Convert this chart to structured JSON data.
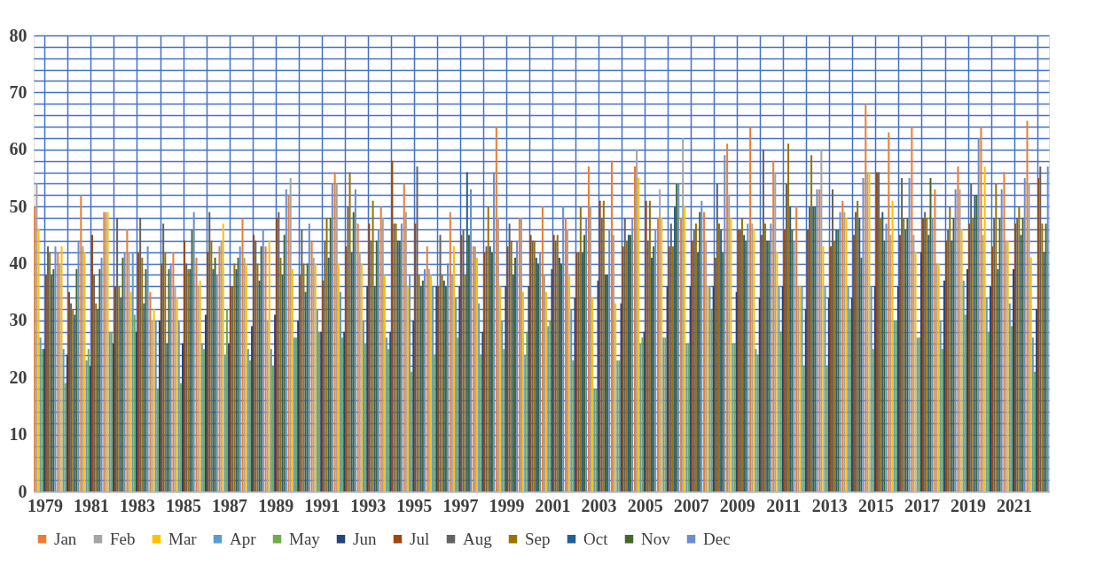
{
  "chart_data": {
    "type": "bar",
    "categories": [
      "1979",
      null,
      "1981",
      null,
      "1983",
      null,
      "1985",
      null,
      "1987",
      null,
      "1989",
      null,
      "1991",
      null,
      "1993",
      null,
      "1995",
      null,
      "1997",
      null,
      "1999",
      null,
      "2001",
      null,
      "2003",
      null,
      "2005",
      null,
      "2007",
      null,
      "2009",
      null,
      "2011",
      null,
      "2013",
      null,
      "2015",
      null,
      "2017",
      null,
      "2019",
      null,
      "2021",
      null
    ],
    "series": [
      {
        "name": "Jan",
        "color": "#ed7d31",
        "values": [
          50,
          42,
          52,
          49,
          46,
          35,
          42,
          41,
          43,
          48,
          43,
          52,
          44,
          56,
          47,
          50,
          54,
          43,
          49,
          43,
          64,
          48,
          50,
          48,
          57,
          58,
          57,
          48,
          48,
          49,
          61,
          64,
          58,
          50,
          53,
          51,
          68,
          63,
          64,
          53,
          57,
          64,
          56,
          65
        ]
      },
      {
        "name": "Feb",
        "color": "#a5a5a5",
        "values": [
          54,
          40,
          43,
          49,
          42,
          30,
          36,
          36,
          44,
          41,
          30,
          55,
          41,
          54,
          42,
          48,
          49,
          39,
          38,
          43,
          48,
          48,
          38,
          46,
          50,
          45,
          60,
          53,
          62,
          44,
          52,
          47,
          56,
          36,
          60,
          49,
          56,
          45,
          45,
          40,
          53,
          45,
          44,
          54
        ]
      },
      {
        "name": "Mar",
        "color": "#ffc000",
        "values": [
          46,
          43,
          42,
          49,
          35,
          32,
          34,
          37,
          47,
          40,
          44,
          39,
          40,
          40,
          40,
          38,
          36,
          38,
          43,
          41,
          36,
          35,
          35,
          38,
          34,
          33,
          55,
          48,
          50,
          36,
          48,
          46,
          42,
          36,
          43,
          48,
          56,
          51,
          42,
          40,
          46,
          57,
          44,
          41
        ]
      },
      {
        "name": "Apr",
        "color": "#5b9bd5",
        "values": [
          27,
          25,
          23,
          28,
          42,
          30,
          30,
          26,
          24,
          25,
          25,
          27,
          32,
          35,
          30,
          27,
          38,
          36,
          34,
          33,
          30,
          24,
          29,
          32,
          18,
          23,
          26,
          27,
          26,
          36,
          26,
          25,
          36,
          36,
          36,
          36,
          36,
          30,
          27,
          30,
          37,
          34,
          33,
          27
        ]
      },
      {
        "name": "May",
        "color": "#70ad47",
        "values": [
          25,
          19,
          25,
          28,
          31,
          18,
          19,
          25,
          32,
          23,
          22,
          27,
          28,
          27,
          26,
          25,
          21,
          24,
          27,
          24,
          25,
          28,
          30,
          23,
          18,
          23,
          27,
          27,
          26,
          32,
          26,
          24,
          28,
          22,
          22,
          32,
          25,
          30,
          27,
          25,
          31,
          28,
          29,
          21
        ]
      },
      {
        "name": "Jun",
        "color": "#264478",
        "values": [
          25,
          24,
          22,
          26,
          28,
          30,
          26,
          31,
          26,
          29,
          31,
          30,
          28,
          28,
          36,
          28,
          30,
          36,
          36,
          28,
          36,
          36,
          39,
          34,
          37,
          33,
          28,
          36,
          36,
          36,
          35,
          34,
          36,
          32,
          34,
          34,
          36,
          36,
          42,
          37,
          39,
          36,
          39,
          32
        ]
      },
      {
        "name": "Jul",
        "color": "#9e480e",
        "values": [
          38,
          35,
          45,
          36,
          42,
          40,
          44,
          42,
          36,
          45,
          48,
          38,
          37,
          43,
          47,
          58,
          47,
          36,
          45,
          42,
          43,
          45,
          45,
          42,
          51,
          43,
          51,
          43,
          44,
          41,
          46,
          45,
          46,
          46,
          43,
          45,
          56,
          45,
          48,
          44,
          47,
          43,
          47,
          55
        ]
      },
      {
        "name": "Aug",
        "color": "#636363",
        "values": [
          43,
          33,
          38,
          48,
          48,
          47,
          40,
          49,
          36,
          44,
          49,
          46,
          44,
          50,
          44,
          47,
          57,
          45,
          46,
          43,
          47,
          44,
          44,
          42,
          48,
          48,
          44,
          47,
          46,
          54,
          46,
          60,
          54,
          50,
          53,
          49,
          56,
          55,
          49,
          46,
          54,
          48,
          48,
          57
        ]
      },
      {
        "name": "Sep",
        "color": "#997300",
        "values": [
          42,
          32,
          33,
          36,
          41,
          42,
          39,
          44,
          40,
          40,
          41,
          40,
          48,
          56,
          51,
          47,
          38,
          38,
          38,
          50,
          44,
          44,
          45,
          50,
          51,
          44,
          51,
          43,
          47,
          47,
          48,
          47,
          61,
          59,
          44,
          51,
          48,
          48,
          48,
          50,
          48,
          54,
          50,
          47
        ]
      },
      {
        "name": "Oct",
        "color": "#255e91",
        "values": [
          38,
          31,
          32,
          34,
          33,
          26,
          39,
          39,
          39,
          37,
          38,
          35,
          41,
          42,
          36,
          44,
          36,
          37,
          56,
          43,
          38,
          41,
          41,
          42,
          38,
          45,
          41,
          50,
          42,
          46,
          45,
          44,
          50,
          50,
          46,
          48,
          49,
          46,
          45,
          44,
          52,
          39,
          45,
          42
        ]
      },
      {
        "name": "Nov",
        "color": "#43682b",
        "values": [
          39,
          39,
          39,
          41,
          39,
          39,
          46,
          41,
          41,
          43,
          45,
          40,
          48,
          49,
          44,
          44,
          37,
          36,
          45,
          42,
          41,
          40,
          40,
          45,
          38,
          45,
          43,
          54,
          49,
          42,
          44,
          44,
          46,
          50,
          46,
          41,
          44,
          48,
          55,
          48,
          52,
          48,
          48,
          47
        ]
      },
      {
        "name": "Dec",
        "color": "#698ed0",
        "values": [
          43,
          44,
          41,
          42,
          43,
          40,
          49,
          38,
          43,
          46,
          53,
          47,
          54,
          53,
          46,
          47,
          39,
          40,
          53,
          56,
          44,
          42,
          50,
          48,
          46,
          48,
          46,
          54,
          51,
          59,
          47,
          47,
          44,
          53,
          49,
          55,
          47,
          55,
          48,
          53,
          62,
          53,
          55,
          57
        ]
      }
    ],
    "ylim": [
      0,
      80
    ],
    "yticks": [
      0,
      {
        "value": 2,
        "label": null
      },
      {
        "value": 4,
        "label": null
      },
      {
        "value": 6,
        "label": null
      },
      {
        "value": 8,
        "label": null
      },
      10,
      {
        "value": 12,
        "label": null
      },
      {
        "value": 14,
        "label": null
      },
      {
        "value": 16,
        "label": null
      },
      {
        "value": 18,
        "label": null
      },
      20,
      {
        "value": 22,
        "label": null
      },
      {
        "value": 24,
        "label": null
      },
      {
        "value": 26,
        "label": null
      },
      {
        "value": 28,
        "label": null
      },
      30,
      {
        "value": 32,
        "label": null
      },
      {
        "value": 34,
        "label": null
      },
      {
        "value": 36,
        "label": null
      },
      {
        "value": 38,
        "label": null
      },
      40,
      {
        "value": 42,
        "label": null
      },
      {
        "value": 44,
        "label": null
      },
      {
        "value": 46,
        "label": null
      },
      {
        "value": 48,
        "label": null
      },
      50,
      {
        "value": 52,
        "label": null
      },
      {
        "value": 54,
        "label": null
      },
      {
        "value": 56,
        "label": null
      },
      {
        "value": 58,
        "label": null
      },
      60,
      {
        "value": 62,
        "label": null
      },
      {
        "value": 64,
        "label": null
      },
      {
        "value": 66,
        "label": null
      },
      {
        "value": 68,
        "label": null
      },
      70,
      {
        "value": 72,
        "label": null
      },
      {
        "value": 74,
        "label": null
      },
      {
        "value": 76,
        "label": null
      },
      {
        "value": 78,
        "label": null
      },
      80
    ],
    "grid": true,
    "legend": "bottom"
  }
}
